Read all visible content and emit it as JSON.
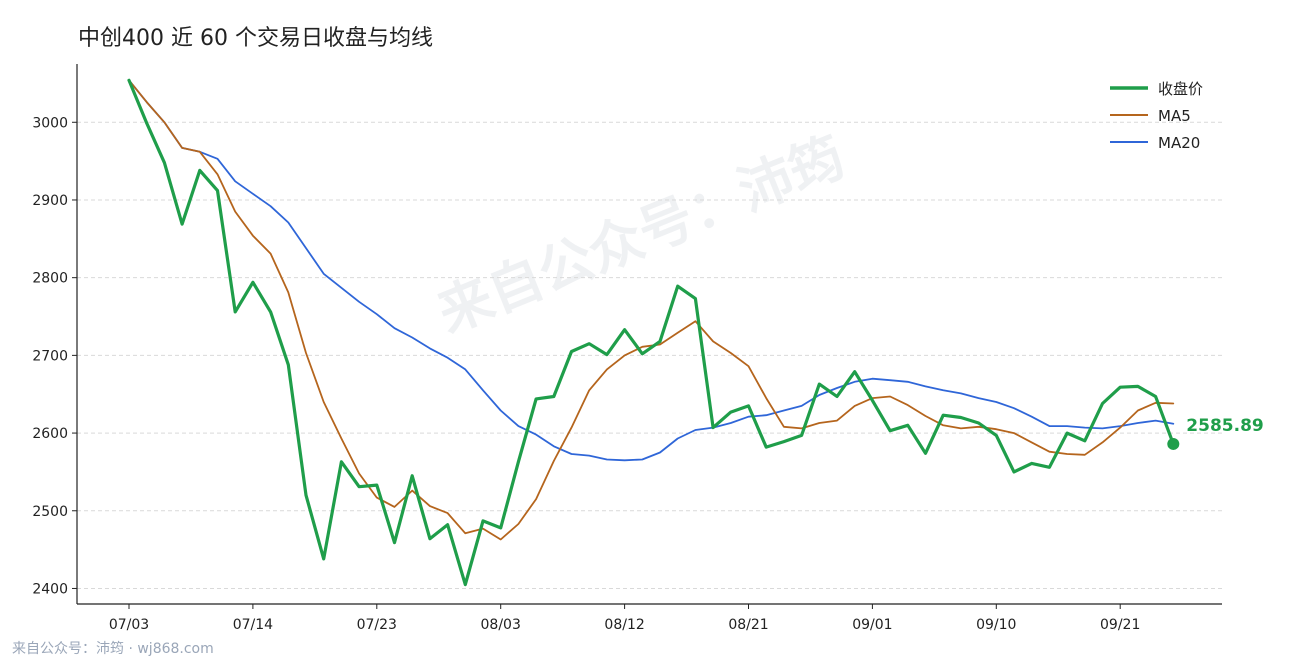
{
  "title": "中创400 近 60 个交易日收盘与均线",
  "footer": "来自公众号：沛筠 · wj868.com",
  "watermark": "来自公众号：沛筠",
  "colors": {
    "close": "#1f9e4a",
    "ma5": "#b5651d",
    "ma20": "#2f66d8",
    "grid": "#d9d9d9",
    "axis": "#222222"
  },
  "chart_data": {
    "type": "line",
    "title": "中创400 近 60 个交易日收盘与均线",
    "xlabel": "",
    "ylabel": "",
    "ylim": [
      2380,
      3075
    ],
    "yticks": [
      2400,
      2500,
      2600,
      2700,
      2800,
      2900,
      3000
    ],
    "xticks": [
      {
        "index": 0,
        "label": "07/03"
      },
      {
        "index": 7,
        "label": "07/14"
      },
      {
        "index": 14,
        "label": "07/23"
      },
      {
        "index": 21,
        "label": "08/03"
      },
      {
        "index": 28,
        "label": "08/12"
      },
      {
        "index": 35,
        "label": "08/21"
      },
      {
        "index": 42,
        "label": "09/01"
      },
      {
        "index": 49,
        "label": "09/10"
      },
      {
        "index": 56,
        "label": "09/21"
      }
    ],
    "grid": "horizontal dashed",
    "legend": "top-right",
    "last_value_label": "2585.89",
    "series": [
      {
        "name": "收盘价",
        "key": "close",
        "values": [
          3054,
          2999,
          2948,
          2869,
          2938,
          2912,
          2756,
          2794,
          2756,
          2688,
          2520,
          2438,
          2563,
          2531,
          2533,
          2459,
          2545,
          2464,
          2482,
          2405,
          2487,
          2478,
          2563,
          2644,
          2647,
          2705,
          2715,
          2701,
          2733,
          2702,
          2718,
          2789,
          2773,
          2607,
          2627,
          2635,
          2582,
          2589,
          2597,
          2663,
          2647,
          2679,
          2642,
          2603,
          2610,
          2574,
          2623,
          2620,
          2613,
          2597,
          2550,
          2561,
          2556,
          2600,
          2590,
          2638,
          2659,
          2660,
          2647,
          2586
        ]
      },
      {
        "name": "MA5",
        "key": "ma5",
        "values": [
          3054,
          3026,
          3000,
          2967,
          2962,
          2933,
          2885,
          2854,
          2831,
          2781,
          2703,
          2640,
          2593,
          2548,
          2517,
          2505,
          2526,
          2506,
          2497,
          2471,
          2477,
          2463,
          2483,
          2515,
          2564,
          2607,
          2655,
          2682,
          2700,
          2711,
          2714,
          2729,
          2744,
          2718,
          2703,
          2686,
          2645,
          2608,
          2606,
          2613,
          2616,
          2635,
          2645,
          2647,
          2636,
          2622,
          2610,
          2606,
          2608,
          2605,
          2600,
          2588,
          2576,
          2573,
          2572,
          2588,
          2607,
          2629,
          2639,
          2638
        ]
      },
      {
        "name": "MA20",
        "key": "ma20",
        "values": [
          3054,
          3026,
          3000,
          2967,
          2962,
          2953,
          2924,
          2908,
          2892,
          2871,
          2838,
          2805,
          2787,
          2769,
          2753,
          2735,
          2723,
          2709,
          2697,
          2682,
          2655,
          2629,
          2609,
          2598,
          2583,
          2573,
          2571,
          2566,
          2565,
          2566,
          2575,
          2593,
          2604,
          2607,
          2613,
          2621,
          2623,
          2629,
          2635,
          2649,
          2658,
          2666,
          2670,
          2668,
          2666,
          2660,
          2655,
          2651,
          2645,
          2640,
          2632,
          2621,
          2609,
          2609,
          2607,
          2606,
          2609,
          2613,
          2616,
          2612
        ]
      }
    ]
  }
}
